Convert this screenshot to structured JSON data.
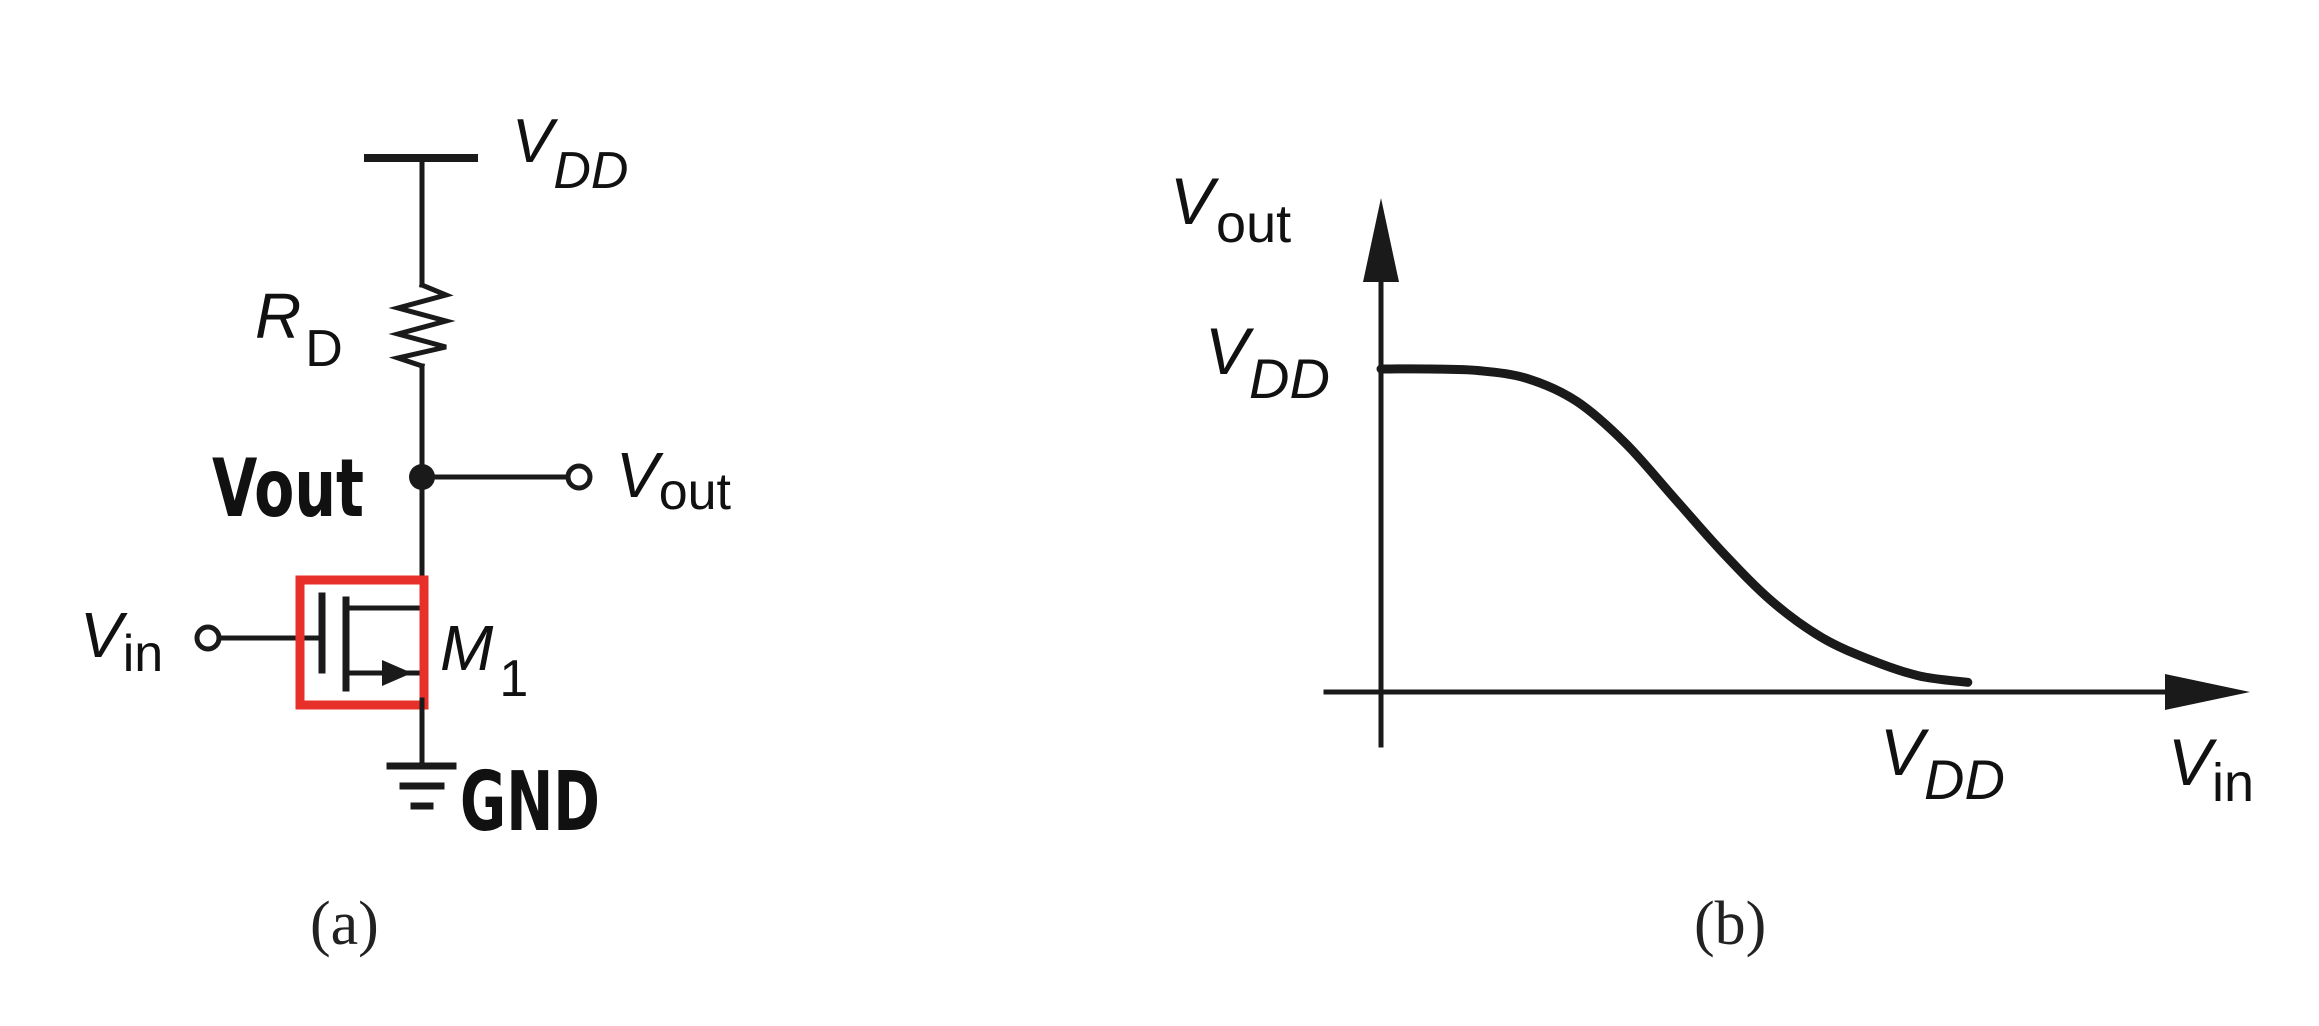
{
  "panel_a": {
    "vdd": {
      "main": "V",
      "sub": "DD"
    },
    "rd": {
      "main": "R",
      "sub": "D"
    },
    "vout_annot": "Vout",
    "vout": {
      "main": "V",
      "sub": "out"
    },
    "vin": {
      "main": "V",
      "sub": "in"
    },
    "m1": {
      "main": "M",
      "sub": "1"
    },
    "gnd": "GND",
    "caption": "(a)",
    "highlight_color": "#e8302a"
  },
  "panel_b": {
    "y_axis": {
      "main": "V",
      "sub": "out"
    },
    "vdd_y": {
      "main": "V",
      "sub": "DD"
    },
    "vdd_x": {
      "main": "V",
      "sub": "DD"
    },
    "x_axis": {
      "main": "V",
      "sub": "in"
    },
    "caption": "(b)"
  },
  "chart_data": {
    "type": "line",
    "title": "",
    "xlabel": "Vin",
    "ylabel": "Vout",
    "xlim": [
      0,
      1.5
    ],
    "ylim": [
      0,
      1.15
    ],
    "series": [
      {
        "name": "Vout",
        "x": [
          0,
          0.1,
          0.2,
          0.3,
          0.4,
          0.5,
          0.6,
          0.7,
          0.8,
          0.9,
          1.0,
          1.1,
          1.2
        ],
        "y": [
          1.0,
          1.0,
          0.995,
          0.97,
          0.9,
          0.77,
          0.6,
          0.43,
          0.28,
          0.17,
          0.1,
          0.05,
          0.03
        ]
      }
    ],
    "x_ticks": [
      "VDD"
    ],
    "y_ticks": [
      "VDD"
    ],
    "grid": false
  }
}
